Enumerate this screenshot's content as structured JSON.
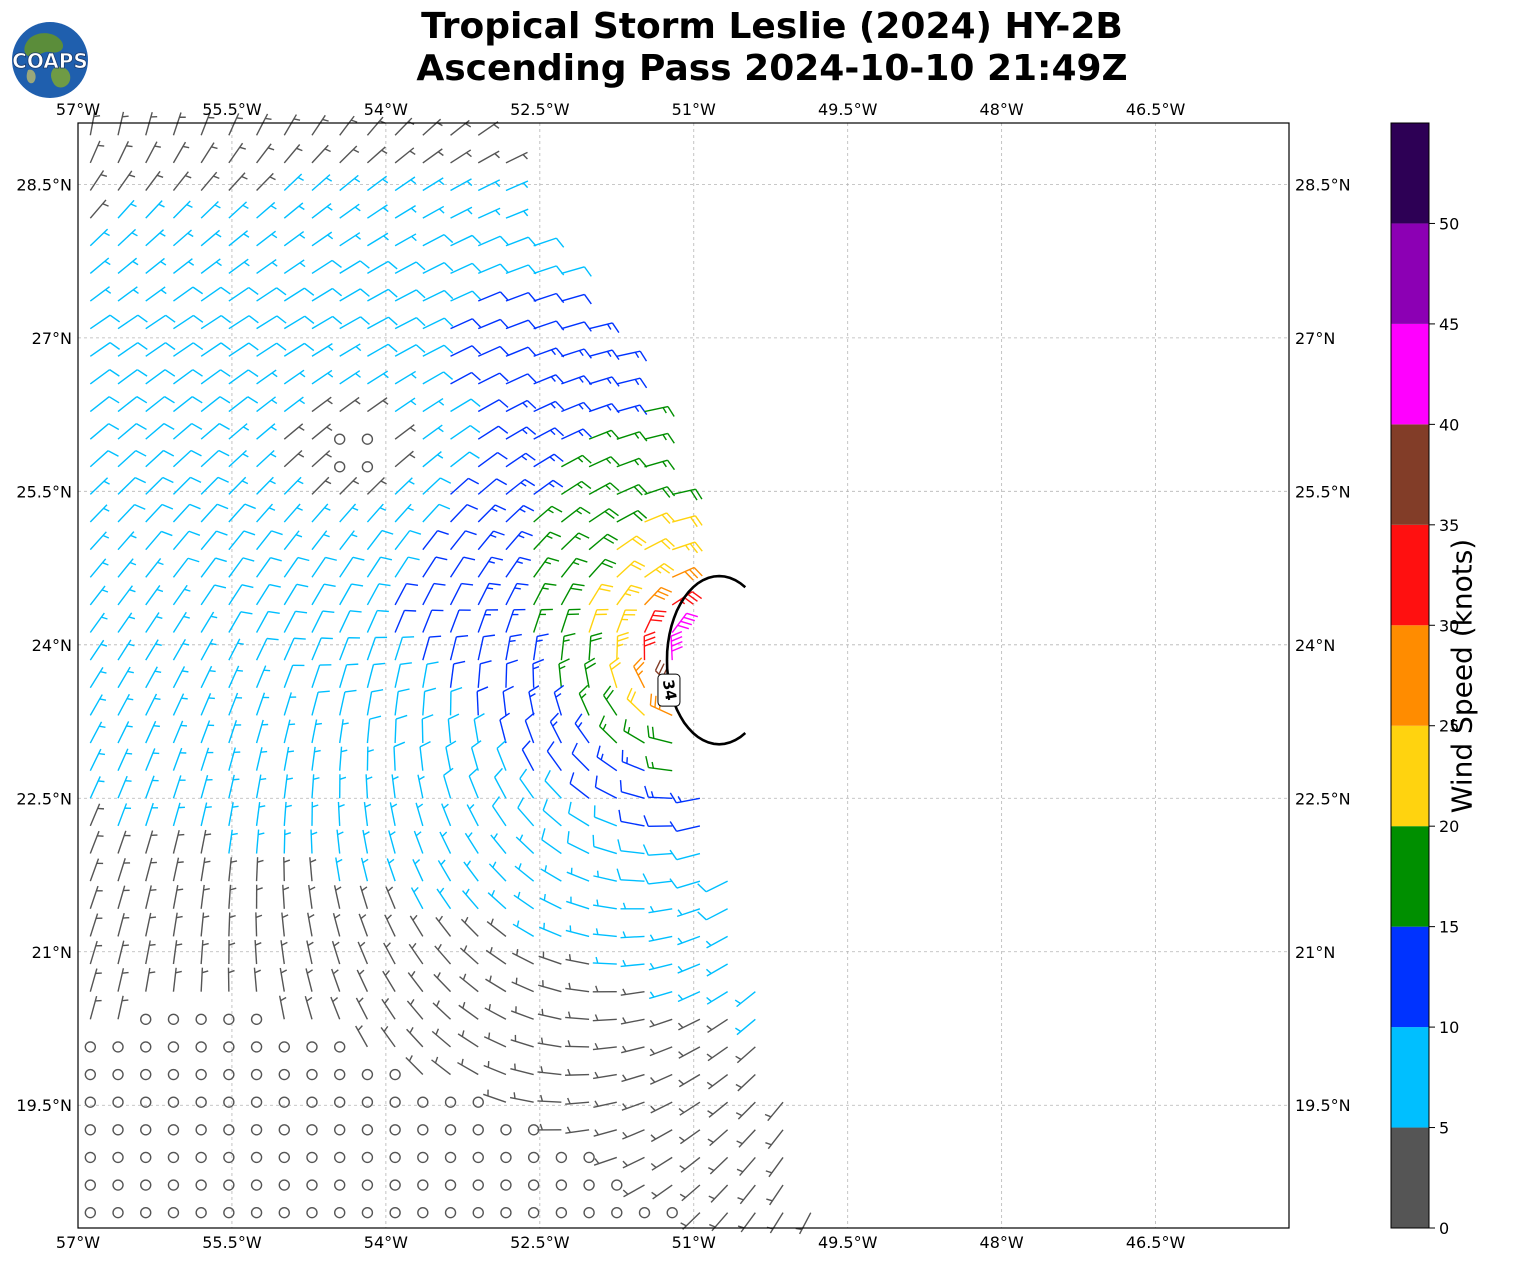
{
  "title_line1": "Tropical Storm Leslie (2024) HY-2B",
  "title_line2": "Ascending Pass 2024-10-10 21:49Z",
  "logo_text": "COAPS",
  "map": {
    "lon_range": [
      -57.0,
      -45.2
    ],
    "lat_range": [
      18.3,
      29.1
    ],
    "lon_ticks": [
      {
        "value": -57.0,
        "label": "57°W"
      },
      {
        "value": -55.5,
        "label": "55.5°W"
      },
      {
        "value": -54.0,
        "label": "54°W"
      },
      {
        "value": -52.5,
        "label": "52.5°W"
      },
      {
        "value": -51.0,
        "label": "51°W"
      },
      {
        "value": -49.5,
        "label": "49.5°W"
      },
      {
        "value": -48.0,
        "label": "48°W"
      },
      {
        "value": -46.5,
        "label": "46.5°W"
      }
    ],
    "lat_ticks": [
      {
        "value": 28.5,
        "label": "28.5°N"
      },
      {
        "value": 27.0,
        "label": "27°N"
      },
      {
        "value": 25.5,
        "label": "25.5°N"
      },
      {
        "value": 24.0,
        "label": "24°N"
      },
      {
        "value": 22.5,
        "label": "22.5°N"
      },
      {
        "value": 21.0,
        "label": "21°N"
      },
      {
        "value": 19.5,
        "label": "19.5°N"
      }
    ],
    "grid": true,
    "storm_center": {
      "lon": -50.85,
      "lat": 23.85
    },
    "contour_label": "34",
    "swath_east_edge": [
      {
        "lat": 29.1,
        "lon": -52.85
      },
      {
        "lat": 28.0,
        "lon": -52.45
      },
      {
        "lat": 27.0,
        "lon": -51.75
      },
      {
        "lat": 26.0,
        "lon": -51.25
      },
      {
        "lat": 25.0,
        "lon": -51.05
      },
      {
        "lat": 24.0,
        "lon": -51.0
      },
      {
        "lat": 23.0,
        "lon": -50.95
      },
      {
        "lat": 22.0,
        "lon": -50.7
      },
      {
        "lat": 21.0,
        "lon": -50.4
      },
      {
        "lat": 20.0,
        "lon": -50.2
      },
      {
        "lat": 19.0,
        "lon": -49.9
      },
      {
        "lat": 18.3,
        "lon": -49.75
      }
    ]
  },
  "colorbar": {
    "label": "Wind Speed (knots)",
    "range": [
      0,
      55
    ],
    "ticks": [
      "0",
      "5",
      "10",
      "15",
      "20",
      "25",
      "30",
      "35",
      "40",
      "45",
      "50"
    ],
    "bins": [
      {
        "from": 0,
        "to": 5,
        "color": "#555555"
      },
      {
        "from": 5,
        "to": 10,
        "color": "#00bfff"
      },
      {
        "from": 10,
        "to": 15,
        "color": "#0033ff"
      },
      {
        "from": 15,
        "to": 20,
        "color": "#008f00"
      },
      {
        "from": 20,
        "to": 25,
        "color": "#ffd30f"
      },
      {
        "from": 25,
        "to": 30,
        "color": "#ff8c00"
      },
      {
        "from": 30,
        "to": 35,
        "color": "#ff1010"
      },
      {
        "from": 35,
        "to": 40,
        "color": "#823d28"
      },
      {
        "from": 40,
        "to": 45,
        "color": "#ff00ff"
      },
      {
        "from": 45,
        "to": 50,
        "color": "#8c00b4"
      },
      {
        "from": 50,
        "to": 55,
        "color": "#2d0055"
      }
    ]
  }
}
